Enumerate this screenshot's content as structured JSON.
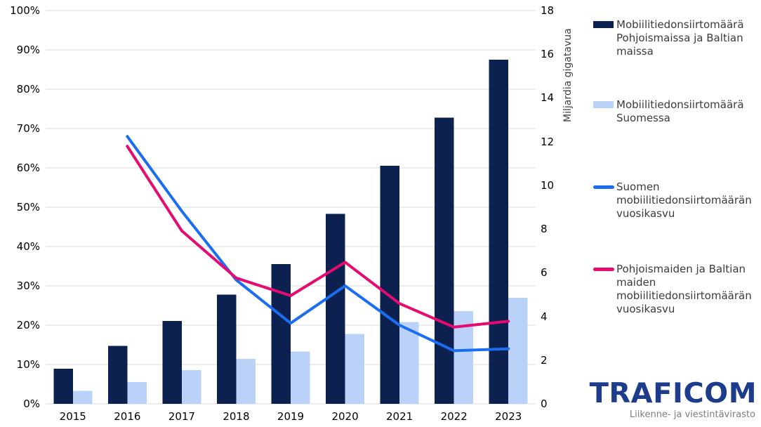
{
  "chart_data": {
    "type": "combo-bar-line",
    "categories": [
      "2015",
      "2016",
      "2017",
      "2018",
      "2019",
      "2020",
      "2021",
      "2022",
      "2023"
    ],
    "bar_series": [
      {
        "name": "Mobiilitiedonsiirtomäärä Pohjoismaissa ja Baltian maissa",
        "axis": "right",
        "color": "#0d2150",
        "values": [
          1.6,
          2.65,
          3.8,
          5.0,
          6.4,
          8.7,
          10.9,
          13.1,
          15.75
        ]
      },
      {
        "name": "Mobiilitiedonsiirtomäärä Suomessa",
        "axis": "right",
        "color": "#bad2f7",
        "values": [
          0.6,
          1.0,
          1.55,
          2.05,
          2.4,
          3.2,
          3.75,
          4.25,
          4.85
        ]
      }
    ],
    "line_series": [
      {
        "name": "Suomen mobiilitiedonsiirtomäärän vuosikasvu",
        "axis": "left",
        "color": "#1b6df2",
        "values": [
          null,
          68,
          49,
          31.5,
          20.5,
          30,
          20,
          13.5,
          14
        ]
      },
      {
        "name": "Pohjoismaiden ja Baltian maiden mobiilitiedonsiirtomäärän vuosikasvu",
        "axis": "left",
        "color": "#e50b6f",
        "values": [
          null,
          65.5,
          44,
          32,
          27.5,
          36,
          25.5,
          19.5,
          21
        ]
      }
    ],
    "left_axis": {
      "ticks": [
        "0%",
        "10%",
        "20%",
        "30%",
        "40%",
        "50%",
        "60%",
        "70%",
        "80%",
        "90%",
        "100%"
      ],
      "min": 0,
      "max": 100,
      "unit": "percent"
    },
    "right_axis": {
      "title": "Miljardia gigatavua",
      "ticks": [
        "0",
        "2",
        "4",
        "6",
        "8",
        "10",
        "12",
        "14",
        "16",
        "18"
      ],
      "min": 0,
      "max": 18
    },
    "grid": true,
    "legend_position": "right"
  },
  "colors": {
    "grid": "#d9d9d9",
    "axis_text": "#000000",
    "legend_text": "#3b3b3b",
    "logo_navy": "#1e3c8c",
    "tagline_gray": "#7d7d7d"
  },
  "logo": {
    "brand": "TRAFICOM",
    "tagline": "Liikenne- ja viestintävirasto"
  }
}
